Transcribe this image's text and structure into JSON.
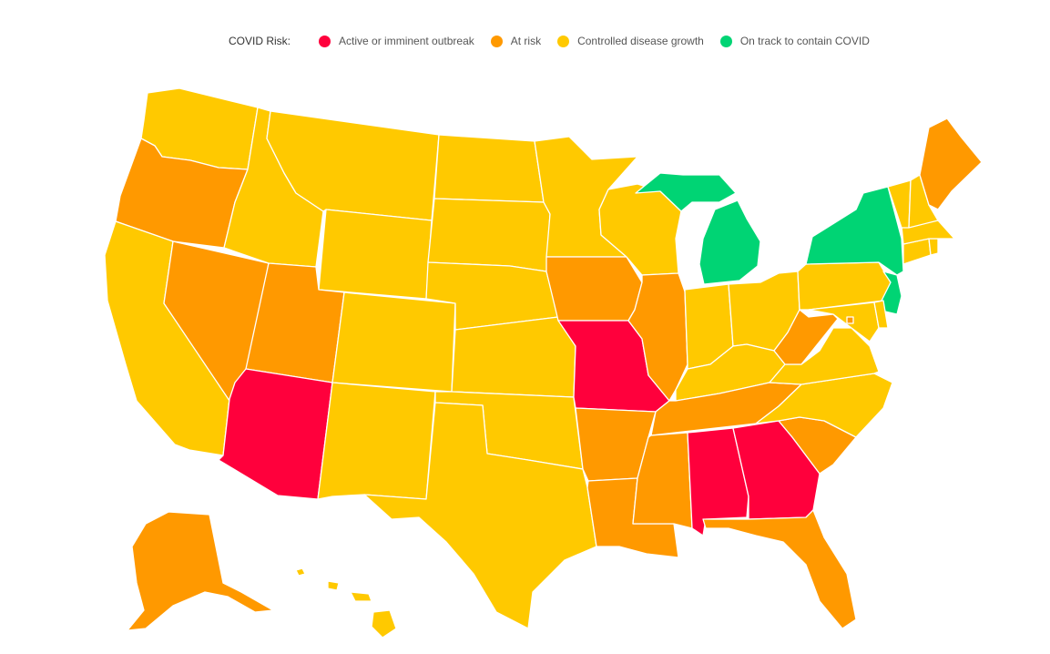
{
  "legend": {
    "title": "COVID Risk:",
    "items": [
      {
        "label": "Active or imminent outbreak",
        "color": "#ff003c"
      },
      {
        "label": "At risk",
        "color": "#ff9900"
      },
      {
        "label": "Controlled disease growth",
        "color": "#ffc900"
      },
      {
        "label": "On track to contain COVID",
        "color": "#00d474"
      }
    ]
  },
  "colors": {
    "red": "#ff003c",
    "orange": "#ff9900",
    "yellow": "#ffc900",
    "green": "#00d474"
  },
  "states": [
    {
      "code": "WA",
      "risk": "yellow"
    },
    {
      "code": "OR",
      "risk": "orange"
    },
    {
      "code": "CA",
      "risk": "yellow"
    },
    {
      "code": "NV",
      "risk": "orange"
    },
    {
      "code": "ID",
      "risk": "yellow"
    },
    {
      "code": "MT",
      "risk": "yellow"
    },
    {
      "code": "WY",
      "risk": "yellow"
    },
    {
      "code": "UT",
      "risk": "orange"
    },
    {
      "code": "AZ",
      "risk": "red"
    },
    {
      "code": "CO",
      "risk": "yellow"
    },
    {
      "code": "NM",
      "risk": "yellow"
    },
    {
      "code": "ND",
      "risk": "yellow"
    },
    {
      "code": "SD",
      "risk": "yellow"
    },
    {
      "code": "NE",
      "risk": "yellow"
    },
    {
      "code": "KS",
      "risk": "yellow"
    },
    {
      "code": "OK",
      "risk": "yellow"
    },
    {
      "code": "TX",
      "risk": "yellow"
    },
    {
      "code": "MN",
      "risk": "yellow"
    },
    {
      "code": "IA",
      "risk": "orange"
    },
    {
      "code": "MO",
      "risk": "red"
    },
    {
      "code": "AR",
      "risk": "orange"
    },
    {
      "code": "LA",
      "risk": "orange"
    },
    {
      "code": "WI",
      "risk": "yellow"
    },
    {
      "code": "IL",
      "risk": "orange"
    },
    {
      "code": "MI",
      "risk": "green"
    },
    {
      "code": "IN",
      "risk": "yellow"
    },
    {
      "code": "OH",
      "risk": "yellow"
    },
    {
      "code": "KY",
      "risk": "yellow"
    },
    {
      "code": "TN",
      "risk": "orange"
    },
    {
      "code": "MS",
      "risk": "orange"
    },
    {
      "code": "AL",
      "risk": "red"
    },
    {
      "code": "GA",
      "risk": "red"
    },
    {
      "code": "FL",
      "risk": "orange"
    },
    {
      "code": "SC",
      "risk": "orange"
    },
    {
      "code": "NC",
      "risk": "yellow"
    },
    {
      "code": "VA",
      "risk": "yellow"
    },
    {
      "code": "WV",
      "risk": "orange"
    },
    {
      "code": "PA",
      "risk": "yellow"
    },
    {
      "code": "NY",
      "risk": "green"
    },
    {
      "code": "NJ",
      "risk": "green"
    },
    {
      "code": "MD",
      "risk": "yellow"
    },
    {
      "code": "DE",
      "risk": "yellow"
    },
    {
      "code": "DC",
      "risk": "orange"
    },
    {
      "code": "CT",
      "risk": "yellow"
    },
    {
      "code": "RI",
      "risk": "yellow"
    },
    {
      "code": "MA",
      "risk": "yellow"
    },
    {
      "code": "VT",
      "risk": "yellow"
    },
    {
      "code": "NH",
      "risk": "yellow"
    },
    {
      "code": "ME",
      "risk": "orange"
    },
    {
      "code": "AK",
      "risk": "orange"
    },
    {
      "code": "HI",
      "risk": "yellow"
    }
  ]
}
